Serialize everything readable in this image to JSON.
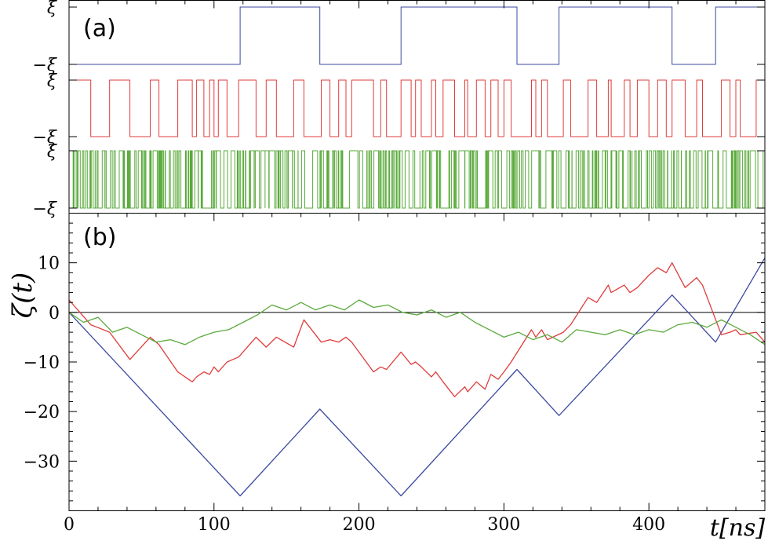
{
  "chart_data": [
    {
      "type": "line",
      "panel_label": "(a)",
      "xlim": [
        0,
        480
      ],
      "grid": false,
      "ytick_labels": [
        "ξ",
        "−ξ",
        "ξ",
        "−ξ",
        "ξ",
        "−ξ"
      ],
      "series": [
        {
          "color": "#3b4aa0",
          "switch_times": [
            0,
            118,
            173,
            229,
            309,
            338,
            416,
            446,
            480
          ],
          "values": [
            -1,
            1,
            -1,
            1,
            -1,
            1,
            -1,
            1
          ]
        },
        {
          "color": "#e03c3c",
          "switch_times": [
            0,
            15,
            28,
            42,
            56,
            62,
            75,
            85,
            88,
            93,
            97,
            100,
            103,
            109,
            117,
            129,
            136,
            143,
            155,
            162,
            174,
            180,
            186,
            191,
            195,
            210,
            215,
            219,
            229,
            236,
            239,
            243,
            250,
            253,
            258,
            266,
            273,
            275,
            281,
            287,
            291,
            296,
            300,
            305,
            319,
            322,
            326,
            330,
            341,
            346,
            358,
            364,
            372,
            374,
            383,
            387,
            392,
            400,
            406,
            412,
            416,
            425,
            433,
            437,
            450,
            456,
            460,
            463,
            474,
            480
          ],
          "values": [
            1,
            -1,
            1,
            -1,
            1,
            -1,
            1,
            -1,
            1,
            -1,
            1,
            -1,
            1,
            -1,
            1,
            -1,
            1,
            -1,
            1,
            -1,
            1,
            -1,
            1,
            -1,
            1,
            -1,
            1,
            -1,
            1,
            -1,
            1,
            -1,
            1,
            -1,
            1,
            -1,
            1,
            -1,
            1,
            -1,
            1,
            -1,
            1,
            -1,
            1,
            -1,
            1,
            -1,
            1,
            -1,
            1,
            -1,
            1,
            -1,
            1,
            -1,
            1,
            -1,
            1,
            -1,
            1,
            -1,
            1,
            -1,
            1,
            -1,
            1,
            -1,
            1
          ]
        },
        {
          "color": "#5aaa3c",
          "switch_rate_per_ns": 0.9,
          "seed": 7,
          "initial_value": -1
        }
      ]
    },
    {
      "type": "line",
      "panel_label": "(b)",
      "xlabel": "t[ns]",
      "ylabel": "ζ(t)",
      "xlim": [
        0,
        480
      ],
      "ylim": [
        -40,
        20
      ],
      "grid": false,
      "xticks": [
        0,
        100,
        200,
        300,
        400
      ],
      "yticks": [
        10,
        0,
        -10,
        -20,
        -30
      ],
      "ytick_labels": [
        "10",
        "0",
        "−10",
        "−20",
        "−30"
      ],
      "zero_line": true,
      "series": [
        {
          "color": "#3b4aa0",
          "x": [
            0,
            118,
            173,
            229,
            309,
            338,
            416,
            446,
            480
          ],
          "y": [
            0,
            -37,
            -19.5,
            -37,
            -11.5,
            -20.8,
            3.5,
            -6,
            11
          ]
        },
        {
          "color": "#e03c3c",
          "x": [
            0,
            15,
            28,
            42,
            56,
            62,
            75,
            85,
            88,
            93,
            97,
            100,
            103,
            109,
            117,
            129,
            136,
            143,
            155,
            162,
            174,
            180,
            186,
            191,
            195,
            210,
            215,
            219,
            229,
            236,
            239,
            243,
            250,
            253,
            258,
            266,
            273,
            275,
            281,
            287,
            291,
            296,
            300,
            305,
            319,
            322,
            326,
            330,
            341,
            346,
            358,
            364,
            372,
            374,
            383,
            387,
            392,
            400,
            406,
            412,
            416,
            425,
            433,
            437,
            450,
            456,
            460,
            463,
            474,
            480
          ],
          "y": [
            2.5,
            -2.5,
            -4,
            -9.5,
            -5,
            -6.5,
            -12,
            -14,
            -13,
            -12,
            -12.5,
            -11,
            -12,
            -10,
            -9,
            -5,
            -7,
            -5,
            -7,
            -1.5,
            -6,
            -5.5,
            -6,
            -5,
            -6,
            -12,
            -11,
            -11.5,
            -8,
            -10.5,
            -10,
            -11,
            -13,
            -12,
            -14,
            -17,
            -15,
            -16,
            -14,
            -15.5,
            -12.5,
            -13.5,
            -12,
            -10,
            -3.5,
            -5,
            -3.5,
            -5.5,
            -4,
            -2.5,
            3,
            2,
            5.5,
            4,
            5.5,
            4,
            5,
            7.5,
            9,
            8,
            10,
            5,
            7,
            5.5,
            -4.5,
            -4,
            -3.5,
            -4.5,
            -4,
            -6
          ]
        },
        {
          "color": "#5aaa3c",
          "x": [
            0,
            10,
            20,
            30,
            40,
            50,
            60,
            70,
            80,
            90,
            100,
            110,
            120,
            130,
            140,
            150,
            160,
            170,
            180,
            190,
            200,
            210,
            220,
            230,
            240,
            250,
            260,
            270,
            280,
            290,
            300,
            310,
            320,
            330,
            340,
            350,
            360,
            370,
            380,
            390,
            400,
            410,
            420,
            430,
            440,
            450,
            460,
            470,
            480
          ],
          "y": [
            0,
            -2,
            -1,
            -4,
            -3,
            -4.5,
            -6,
            -5.5,
            -6.5,
            -5,
            -4,
            -3.5,
            -2,
            -0.5,
            1.5,
            0.5,
            2,
            0.5,
            1.5,
            0.5,
            2.5,
            1,
            1.5,
            0,
            -0.5,
            0.5,
            -1,
            0,
            -2,
            -3.5,
            -5,
            -4,
            -5.5,
            -4.5,
            -6,
            -3.5,
            -4,
            -4.5,
            -3.5,
            -4.5,
            -3.5,
            -4,
            -2.5,
            -2,
            -3,
            -1.5,
            -3,
            -4.5,
            -6.5
          ]
        }
      ]
    }
  ]
}
